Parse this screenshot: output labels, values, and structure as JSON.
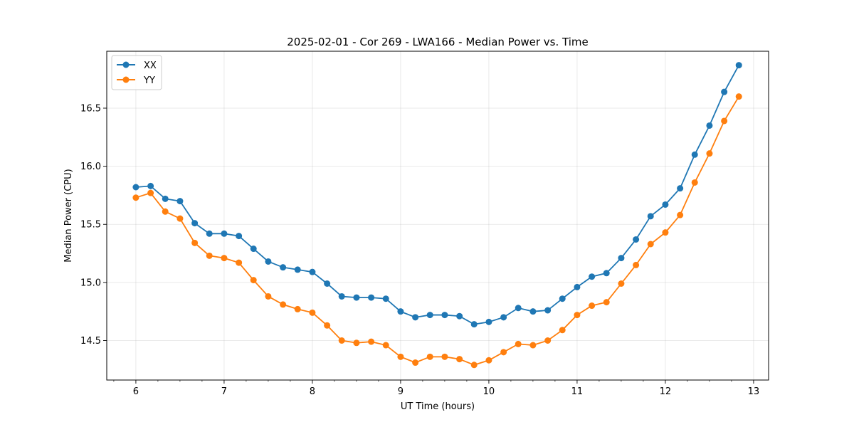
{
  "chart_data": {
    "type": "line",
    "title": "2025-02-01 - Cor 269 - LWA166 - Median Power vs. Time",
    "xlabel": "UT Time (hours)",
    "ylabel": "Median Power (CPU)",
    "xlim": [
      5.67,
      13.17
    ],
    "ylim": [
      14.16,
      16.99
    ],
    "xticks": [
      6,
      7,
      8,
      9,
      10,
      11,
      12,
      13
    ],
    "yticks": [
      14.5,
      15.0,
      15.5,
      16.0,
      16.5
    ],
    "ytick_labels": [
      "14.5",
      "15.0",
      "15.5",
      "16.0",
      "16.5"
    ],
    "grid": true,
    "legend_position": "top-left",
    "x": [
      6.0,
      6.167,
      6.333,
      6.5,
      6.667,
      6.833,
      7.0,
      7.167,
      7.333,
      7.5,
      7.667,
      7.833,
      8.0,
      8.167,
      8.333,
      8.5,
      8.667,
      8.833,
      9.0,
      9.167,
      9.333,
      9.5,
      9.667,
      9.833,
      10.0,
      10.167,
      10.333,
      10.5,
      10.667,
      10.833,
      11.0,
      11.167,
      11.333,
      11.5,
      11.667,
      11.833,
      12.0,
      12.167,
      12.333,
      12.5,
      12.667,
      12.833
    ],
    "series": [
      {
        "name": "XX",
        "color": "#1f77b4",
        "values": [
          15.82,
          15.83,
          15.72,
          15.7,
          15.51,
          15.42,
          15.42,
          15.4,
          15.29,
          15.18,
          15.13,
          15.11,
          15.09,
          14.99,
          14.88,
          14.87,
          14.87,
          14.86,
          14.75,
          14.7,
          14.72,
          14.72,
          14.71,
          14.64,
          14.66,
          14.7,
          14.78,
          14.75,
          14.76,
          14.86,
          14.96,
          15.05,
          15.08,
          15.21,
          15.37,
          15.57,
          15.67,
          15.81,
          16.1,
          16.35,
          16.64,
          16.87
        ]
      },
      {
        "name": "YY",
        "color": "#ff7f0e",
        "values": [
          15.73,
          15.77,
          15.61,
          15.55,
          15.34,
          15.23,
          15.21,
          15.17,
          15.02,
          14.88,
          14.81,
          14.77,
          14.74,
          14.63,
          14.5,
          14.48,
          14.49,
          14.46,
          14.36,
          14.31,
          14.36,
          14.36,
          14.34,
          14.29,
          14.33,
          14.4,
          14.47,
          14.46,
          14.5,
          14.59,
          14.72,
          14.8,
          14.83,
          14.99,
          15.15,
          15.33,
          15.43,
          15.58,
          15.86,
          16.11,
          16.39,
          16.6
        ]
      }
    ]
  }
}
